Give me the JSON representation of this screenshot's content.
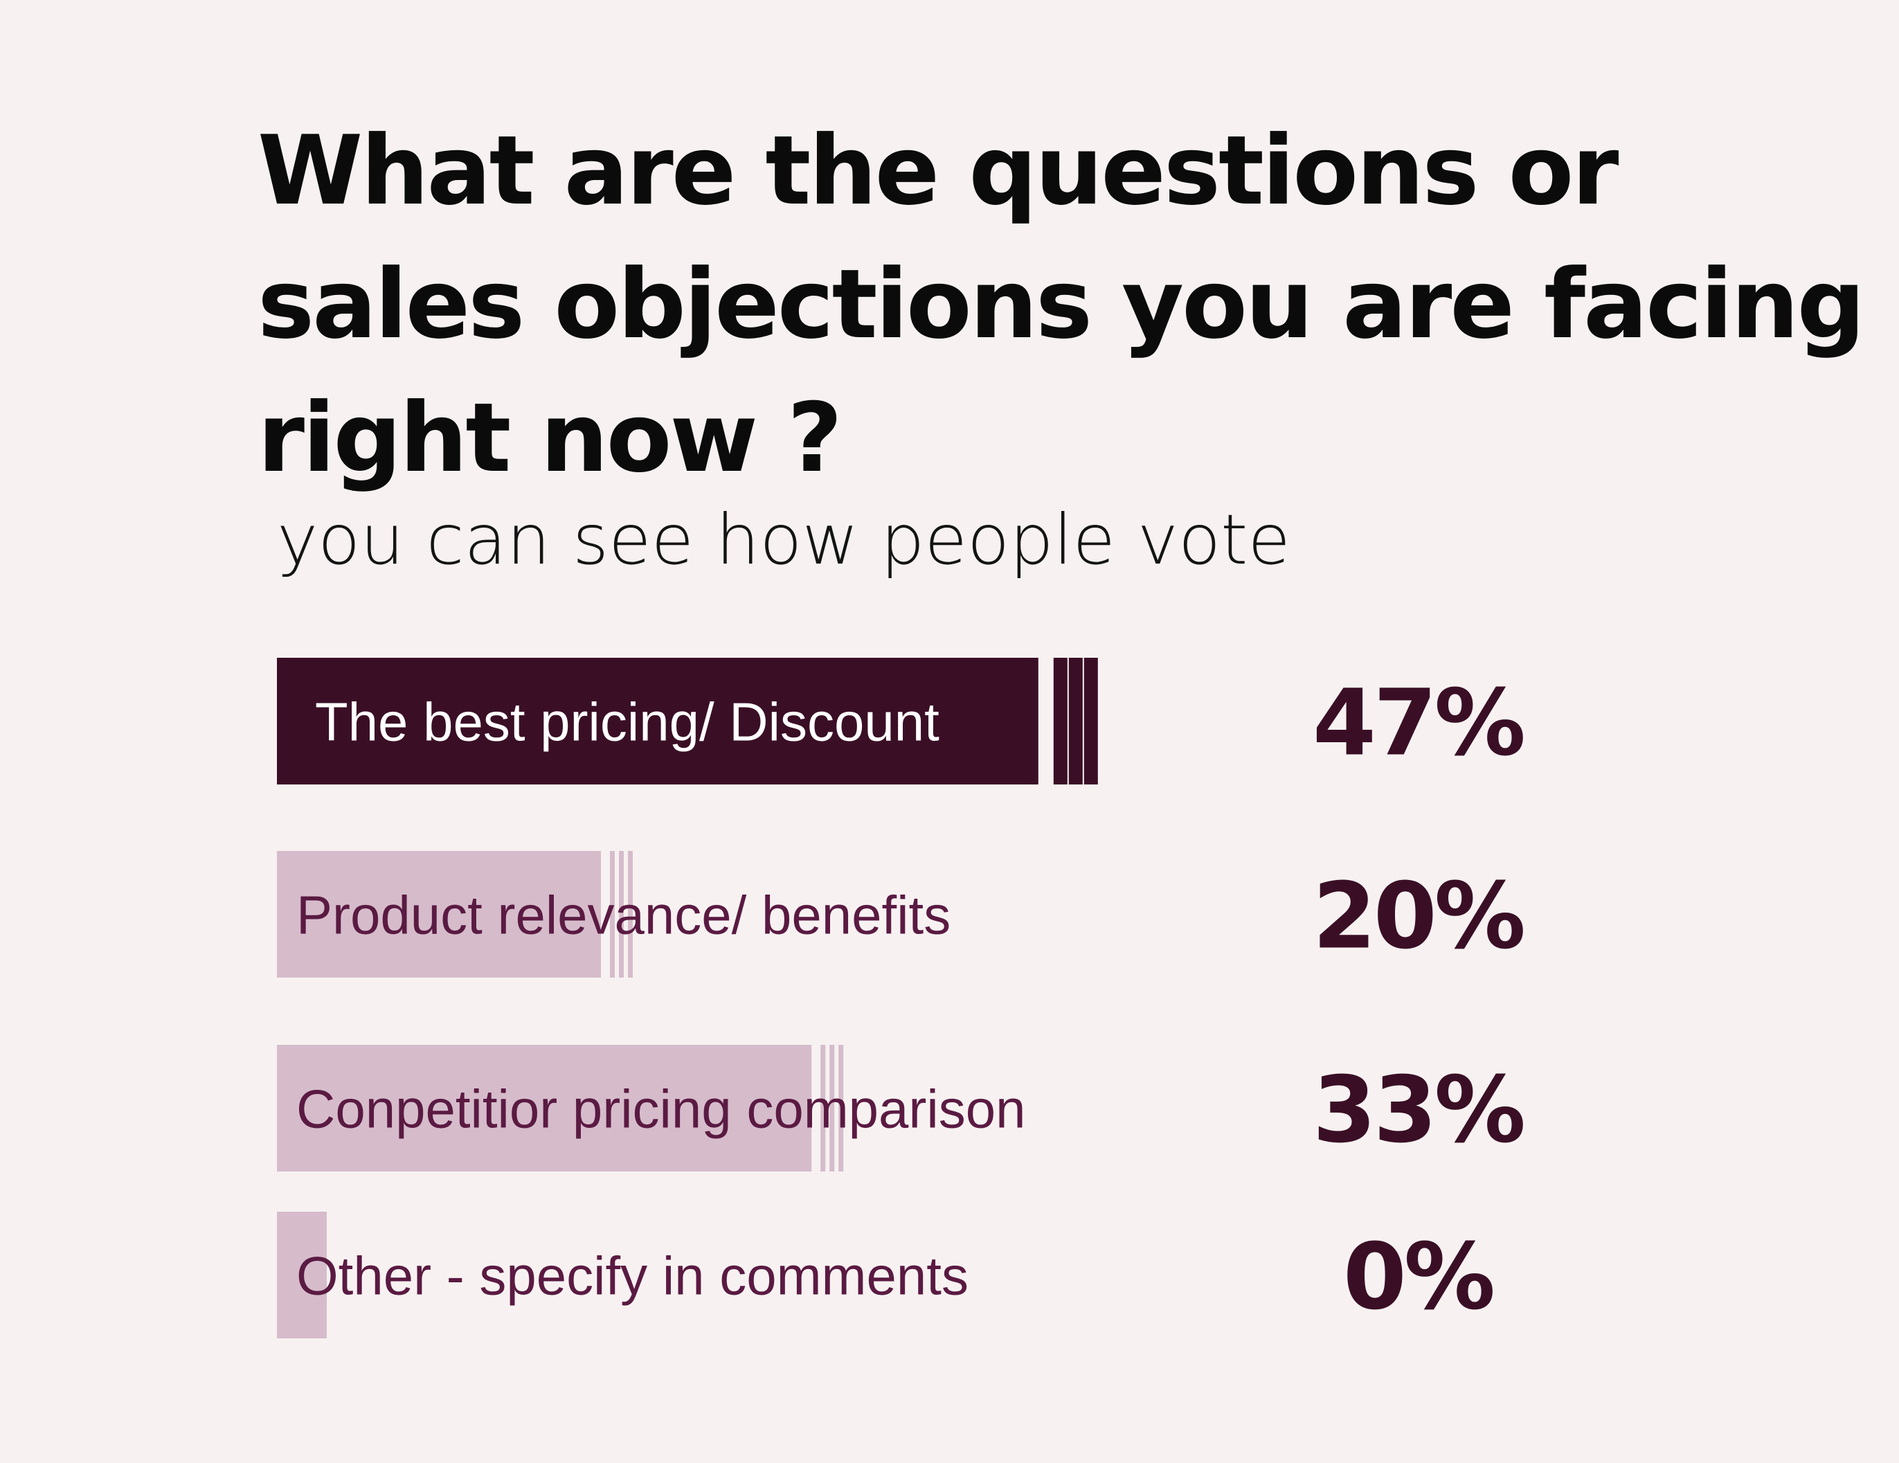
{
  "title_lines": [
    "What are the questions or",
    "sales objections you are facing",
    "right now ?"
  ],
  "subtitle": "you can see how people vote",
  "colors": {
    "background": "#f7f2f1",
    "highlight_bar": "#3a0f26",
    "muted_bar": "#d6bccb",
    "highlight_label": "#ffffff",
    "muted_label": "#5a1a42",
    "value_text": "#3a0f26"
  },
  "chart_data": {
    "type": "bar",
    "orientation": "horizontal",
    "categories": [
      "The best pricing/ Discount",
      "Product relevance/ benefits",
      "Conpetitior pricing comparison",
      "Other - specify in comments"
    ],
    "values": [
      47,
      20,
      33,
      0
    ],
    "value_labels": [
      "47%",
      "20%",
      "33%",
      "0%"
    ],
    "unit": "%",
    "highlight_index": 0,
    "legend": "none",
    "grid": false
  }
}
